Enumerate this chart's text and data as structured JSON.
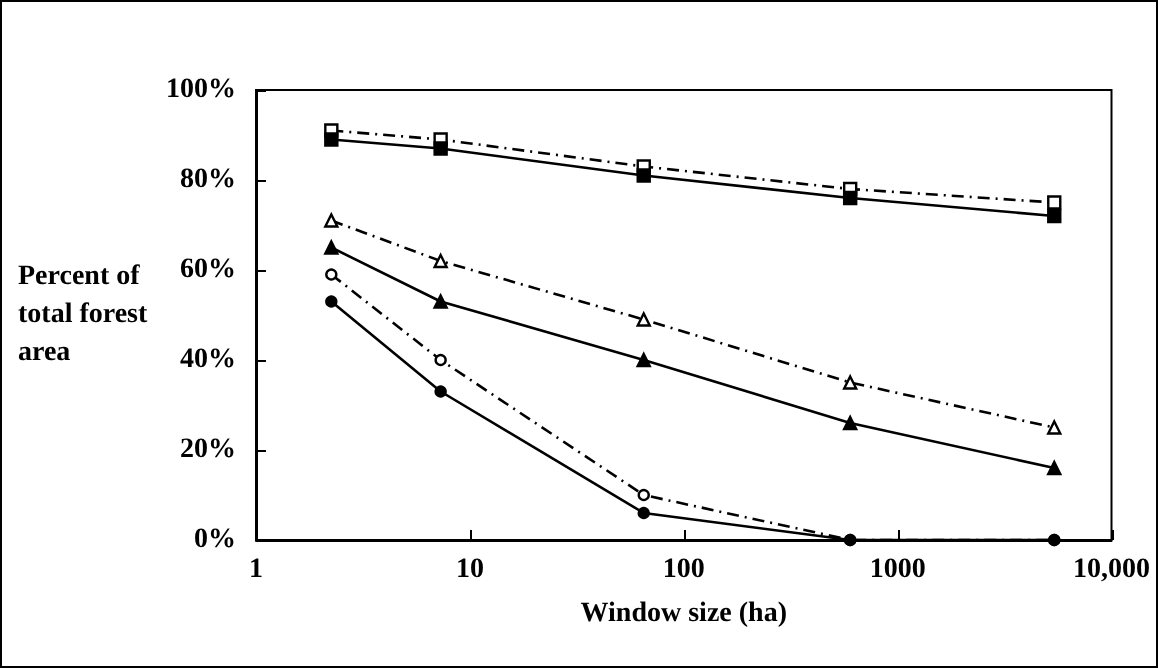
{
  "chart_data": {
    "type": "line",
    "xlabel": "Window size (ha)",
    "ylabel": "Percent of total forest area",
    "x": [
      2.25,
      7.3,
      65,
      600,
      5400
    ],
    "xlim": [
      1,
      10000
    ],
    "xticks": [
      1,
      10,
      100,
      1000,
      {
        "value": 10000,
        "label": "10,000"
      }
    ],
    "log": "x",
    "ylim": [
      0,
      100
    ],
    "yticks": [
      {
        "value": 0,
        "label": "0%"
      },
      {
        "value": 20,
        "label": "20%"
      },
      {
        "value": 40,
        "label": "40%"
      },
      {
        "value": 60,
        "label": "60%"
      },
      {
        "value": 80,
        "label": "80%"
      },
      {
        "value": 100,
        "label": "100%"
      }
    ],
    "grid": false,
    "series": [
      {
        "color": "#000000",
        "marker": "square",
        "line_style": "dashdot",
        "values": [
          91,
          89,
          83,
          78,
          75
        ]
      },
      {
        "color": "#000000",
        "marker": "square",
        "line_style": "solid",
        "values": [
          89,
          87,
          81,
          76,
          72
        ]
      },
      {
        "color": "#000000",
        "marker": "triangle",
        "line_style": "dashdot",
        "values": [
          71,
          62,
          49,
          35,
          25
        ]
      },
      {
        "color": "#000000",
        "marker": "triangle",
        "line_style": "solid",
        "values": [
          65,
          53,
          40,
          26,
          16
        ]
      },
      {
        "color": "#000000",
        "marker": "circle",
        "line_style": "dashdot",
        "values": [
          59,
          40,
          10,
          0,
          0
        ]
      },
      {
        "color": "#000000",
        "marker": "circle",
        "line_style": "solid",
        "values": [
          53,
          33,
          6,
          0,
          0
        ]
      }
    ]
  }
}
